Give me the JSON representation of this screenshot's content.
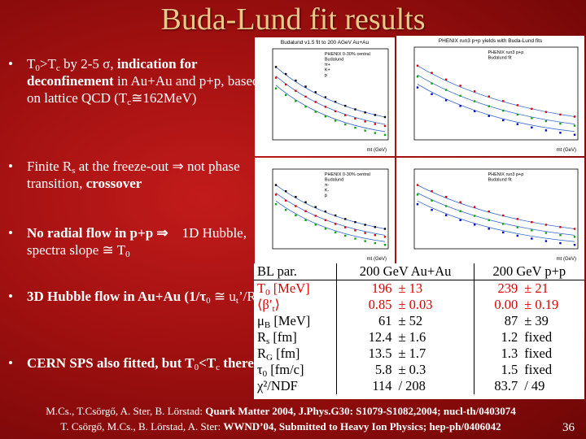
{
  "title": "Buda-Lund fit results",
  "bullets": [
    [
      "T",
      "0",
      ">T",
      "c",
      " by 2-5 σ, ",
      "indication for deconfinement",
      " in Au+Au and p+p, based on lattice QCD (T",
      "c",
      "≅162MeV)"
    ],
    [
      "Finite R",
      "s",
      " at the freeze-out ⇒ not phase transition, ",
      "crossover"
    ],
    [
      "No radial flow in p+p ⇒",
      "1D Hubble, spectra slope ≅ T",
      "0"
    ],
    [
      "3D Hubble flow in Au+Au (1/τ",
      "0",
      " ≅ u",
      "t",
      "’/R",
      "s",
      ")"
    ],
    [
      "CERN SPS also fitted, but T",
      "0",
      "<T",
      "c",
      " there!"
    ]
  ],
  "plots": [
    {
      "title": "Budalund v1.5 fit to 200 AGeV Au+Au",
      "legend": [
        "PHENIX 0-30% central",
        "Budalund",
        "π+",
        "K+",
        "p"
      ],
      "x_label": "mt (GeV)"
    },
    {
      "title": "PHENIX run3 p+p yields with Buda-Lund fits",
      "legend": [
        "PHENIX run3 p+p",
        "Budalund fit"
      ],
      "x_label": "mt (GeV)"
    },
    {
      "legend": [
        "PHENIX 0-30% central",
        "Budalund",
        "π-",
        "K-",
        "p̄"
      ],
      "x_label": "mt (GeV)"
    },
    {
      "legend": [
        "PHENIX run3 p+p",
        "Budalund fit"
      ],
      "x_label": "mt (GeV)"
    }
  ],
  "table": {
    "header": [
      "BL par.",
      "200 GeV Au+Au",
      "200 GeV p+p"
    ],
    "rows": [
      {
        "label": [
          "T",
          "0",
          " [MeV]"
        ],
        "cells": [
          "196",
          "± 13",
          "239",
          "± 21"
        ]
      },
      {
        "label": [
          "⟨β′",
          "t",
          "⟩"
        ],
        "cells": [
          "0.85",
          "± 0.03",
          "0.00",
          "± 0.19"
        ]
      },
      {
        "label": [
          "μ",
          "B",
          " [MeV]"
        ],
        "cells": [
          "61",
          "± 52",
          "87",
          "± 39"
        ]
      },
      {
        "label": [
          "R",
          "s",
          " [fm]"
        ],
        "cells": [
          "12.4",
          "± 1.6",
          "1.2",
          "fixed"
        ]
      },
      {
        "label": [
          "R",
          "G",
          " [fm]"
        ],
        "cells": [
          "13.5",
          "± 1.7",
          "1.3",
          "fixed"
        ]
      },
      {
        "label": [
          "τ",
          "0",
          " [fm/c]"
        ],
        "cells": [
          "5.8",
          "± 0.3",
          "1.5",
          "fixed"
        ]
      },
      {
        "label": [
          "χ²/NDF",
          "",
          ""
        ],
        "cells": [
          "114",
          "/ 208",
          "83.7",
          "/ 49"
        ]
      }
    ]
  },
  "footer": [
    [
      "M.Cs., T.Csörgő, A. Ster, B. Lörstad: ",
      "Quark Matter 2004, J.Phys.G30: S1079-S1082,2004; nucl-th/0403074"
    ],
    [
      "T. Csörgő, M.Cs., B. Lörstad, A. Ster: ",
      "WWND’04, Submitted to Heavy Ion Physics; hep-ph/0406042"
    ]
  ],
  "page_number": 36
}
